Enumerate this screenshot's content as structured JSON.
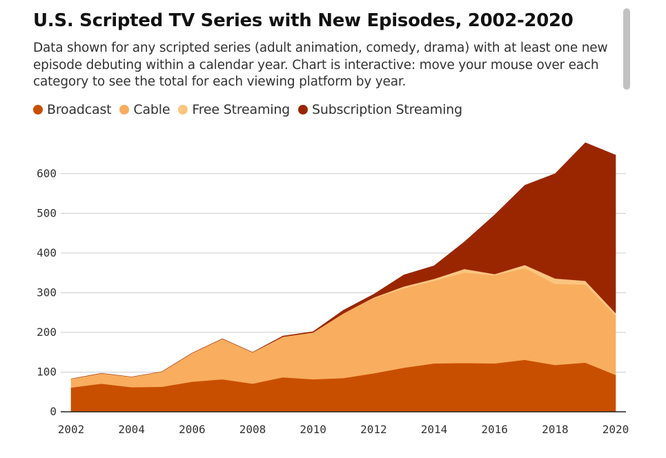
{
  "header": {
    "title": "U.S. Scripted TV Series with New Episodes, 2002-2020",
    "subtitle": "Data shown for any scripted series (adult animation, comedy, drama) with at least one new episode debuting within a calendar year. Chart is interactive: move your mouse over each category to see the total for each viewing platform by year."
  },
  "legend": {
    "items": [
      {
        "label": "Broadcast",
        "color": "#c94f00"
      },
      {
        "label": "Cable",
        "color": "#f8ad5f"
      },
      {
        "label": "Free Streaming",
        "color": "#fcc57f"
      },
      {
        "label": "Subscription Streaming",
        "color": "#9a2600"
      }
    ]
  },
  "chart_data": {
    "type": "area",
    "stacked": true,
    "x": [
      2002,
      2003,
      2004,
      2005,
      2006,
      2007,
      2008,
      2009,
      2010,
      2011,
      2012,
      2013,
      2014,
      2015,
      2016,
      2017,
      2018,
      2019,
      2020
    ],
    "series": [
      {
        "name": "Broadcast",
        "color": "#c94f00",
        "values": [
          61,
          71,
          62,
          63,
          76,
          82,
          71,
          87,
          82,
          85,
          97,
          111,
          122,
          123,
          122,
          131,
          118,
          124,
          93
        ]
      },
      {
        "name": "Cable",
        "color": "#f8ad5f",
        "values": [
          22,
          26,
          26,
          38,
          72,
          102,
          79,
          102,
          118,
          163,
          189,
          200,
          208,
          228,
          222,
          231,
          204,
          197,
          149
        ]
      },
      {
        "name": "Free Streaming",
        "color": "#fcc57f",
        "values": [
          0,
          0,
          0,
          0,
          0,
          0,
          0,
          0,
          0,
          0,
          2,
          5,
          5,
          9,
          3,
          8,
          14,
          9,
          7
        ]
      },
      {
        "name": "Subscription Streaming",
        "color": "#9a2600",
        "values": [
          0,
          0,
          0,
          0,
          0,
          0,
          0,
          2,
          2,
          8,
          8,
          29,
          33,
          68,
          149,
          201,
          264,
          348,
          398
        ]
      }
    ],
    "xticks": [
      2002,
      2004,
      2006,
      2008,
      2010,
      2012,
      2014,
      2016,
      2018,
      2020
    ],
    "yticks": [
      0,
      100,
      200,
      300,
      400,
      500,
      600
    ],
    "xlim": [
      2002,
      2020
    ],
    "ylim": [
      0,
      690
    ],
    "grid": true,
    "legend_position": "top-left"
  },
  "style": {
    "gridline_color": "#cccccc",
    "axis_color": "#222222"
  }
}
